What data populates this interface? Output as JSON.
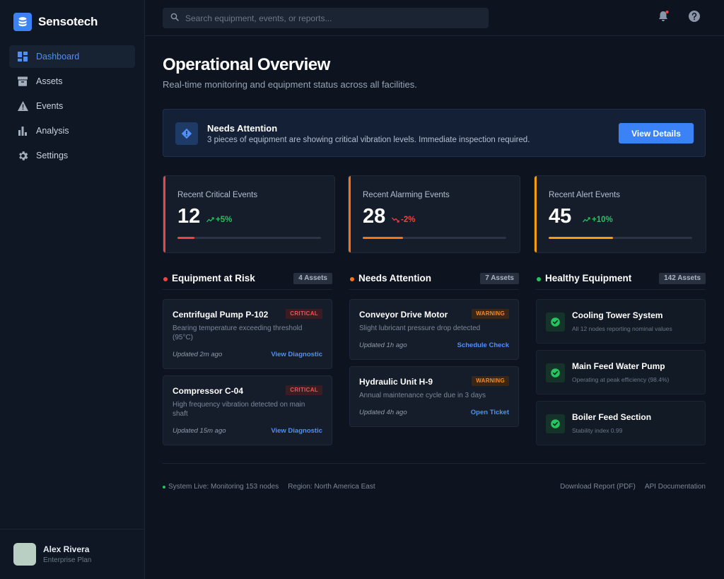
{
  "app": {
    "name": "Sensotech"
  },
  "sidebar": {
    "items": [
      {
        "label": "Dashboard",
        "icon": "dashboard-icon",
        "active": true
      },
      {
        "label": "Assets",
        "icon": "archive-icon"
      },
      {
        "label": "Events",
        "icon": "warning-icon"
      },
      {
        "label": "Analysis",
        "icon": "bar-chart-icon"
      },
      {
        "label": "Settings",
        "icon": "gear-icon"
      }
    ]
  },
  "user": {
    "name": "Alex Rivera",
    "plan": "Enterprise Plan"
  },
  "header": {
    "search_placeholder": "Search equipment, events, or reports...",
    "notification_dot_color": "#ef4444"
  },
  "page": {
    "title": "Operational Overview",
    "subtitle": "Real-time monitoring and equipment status across all facilities."
  },
  "alert": {
    "title": "Needs Attention",
    "text": "3 pieces of equipment are showing critical vibration levels. Immediate inspection required.",
    "button": "View Details"
  },
  "colors": {
    "accent": "#3b82f6",
    "critical": "#ef4444",
    "alarming": "#f97316",
    "alert": "#f59e0b",
    "healthy": "#22c55e"
  },
  "stats": [
    {
      "label": "Recent Critical Events",
      "value": "12",
      "trend": "+5%",
      "trend_direction": "up",
      "trend_color": "#22c55e",
      "accent": "#ef4444",
      "progress": 0.12
    },
    {
      "label": "Recent Alarming Events",
      "value": "28",
      "trend": "-2%",
      "trend_direction": "down",
      "trend_color": "#ef4444",
      "accent": "#f97316",
      "progress": 0.28
    },
    {
      "label": "Recent Alert Events",
      "value": "45",
      "trend": "+10%",
      "trend_direction": "up",
      "trend_color": "#22c55e",
      "accent": "#f59e0b",
      "progress": 0.45
    }
  ],
  "columns": {
    "risk": {
      "title": "Equipment at Risk",
      "badge": "4 Assets",
      "dot_color": "#ef4444",
      "cards": [
        {
          "title": "Centrifugal Pump P-102",
          "tag": "CRITICAL",
          "desc": "Bearing temperature exceeding threshold (95°C)",
          "updated": "Updated 2m ago",
          "link": "View Diagnostic"
        },
        {
          "title": "Compressor C-04",
          "tag": "CRITICAL",
          "desc": "High frequency vibration detected on main shaft",
          "updated": "Updated 15m ago",
          "link": "View Diagnostic"
        }
      ]
    },
    "attention": {
      "title": "Needs Attention",
      "badge": "7 Assets",
      "dot_color": "#f97316",
      "cards": [
        {
          "title": "Conveyor Drive Motor",
          "tag": "WARNING",
          "desc": "Slight lubricant pressure drop detected",
          "updated": "Updated 1h ago",
          "link": "Schedule Check"
        },
        {
          "title": "Hydraulic Unit H-9",
          "tag": "WARNING",
          "desc": "Annual maintenance cycle due in 3 days",
          "updated": "Updated 4h ago",
          "link": "Open Ticket"
        }
      ]
    },
    "healthy": {
      "title": "Healthy Equipment",
      "badge": "142 Assets",
      "dot_color": "#22c55e",
      "cards": [
        {
          "title": "Cooling Tower System",
          "sub": "All 12 nodes reporting nominal values"
        },
        {
          "title": "Main Feed Water Pump",
          "sub": "Operating at peak efficiency (98.4%)"
        },
        {
          "title": "Boiler Feed Section",
          "sub": "Stability index 0.99"
        }
      ]
    }
  },
  "footer": {
    "status": "System Live: Monitoring 153 nodes",
    "region": "Region: North America East",
    "download": "Download Report (PDF)",
    "api": "API Documentation"
  }
}
